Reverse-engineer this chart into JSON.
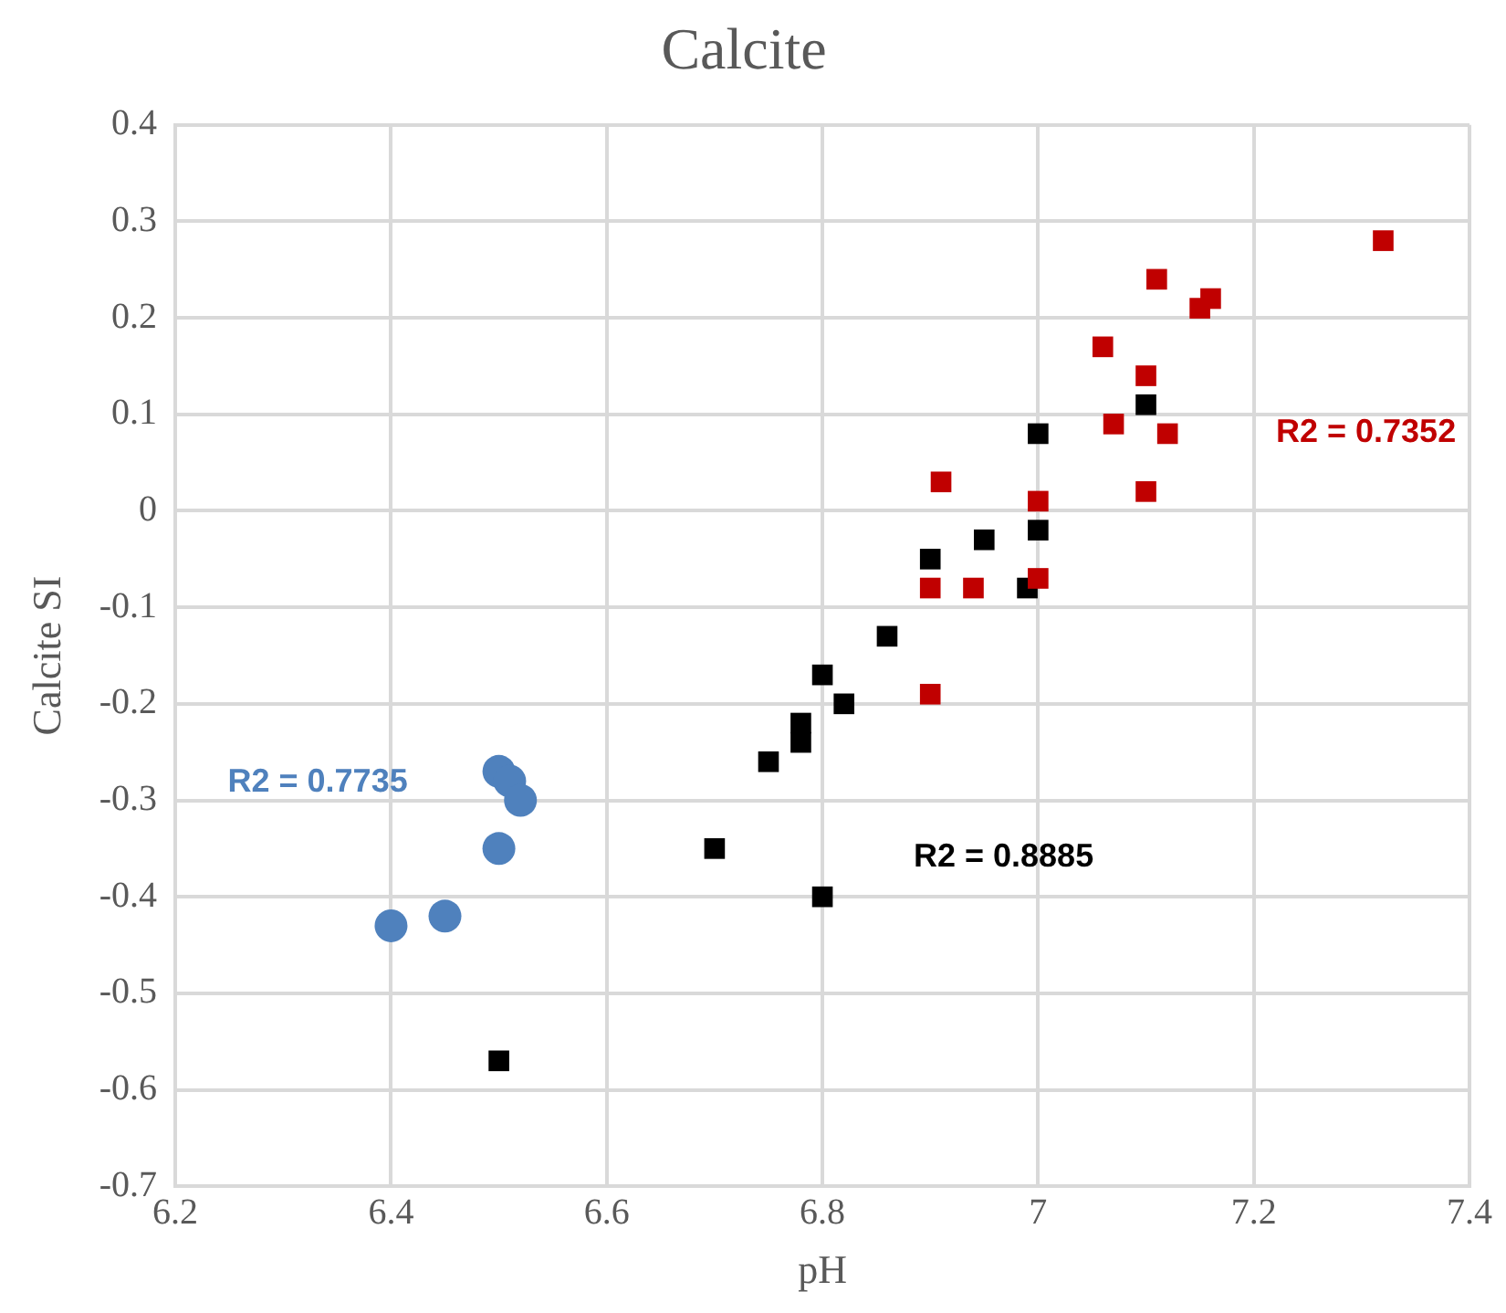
{
  "chart_data": {
    "type": "scatter",
    "title": "Calcite",
    "xlabel": "pH",
    "ylabel": "Calcite SI",
    "xlim": [
      6.2,
      7.4
    ],
    "xticks": [
      6.2,
      6.4,
      6.6,
      6.8,
      7,
      7.2,
      7.4
    ],
    "ylim": [
      -0.7,
      0.4
    ],
    "yticks": [
      -0.7,
      -0.6,
      -0.5,
      -0.4,
      -0.3,
      -0.2,
      -0.1,
      0,
      0.1,
      0.2,
      0.3,
      0.4
    ],
    "grid": true,
    "series": [
      {
        "color": "#4f81bd",
        "marker": "circle",
        "x": [
          6.4,
          6.45,
          6.5,
          6.51,
          6.52,
          6.5
        ],
        "values": [
          -0.43,
          -0.42,
          -0.27,
          -0.28,
          -0.3,
          -0.35
        ]
      },
      {
        "color": "#c00000",
        "marker": "square",
        "x": [
          6.9,
          6.91,
          6.9,
          6.94,
          7,
          7,
          7.06,
          7.07,
          7.1,
          7.1,
          7.11,
          7.12,
          7.15,
          7.16,
          7.32
        ],
        "values": [
          -0.08,
          0.03,
          -0.19,
          -0.08,
          0.01,
          -0.07,
          0.17,
          0.09,
          0.14,
          0.02,
          0.24,
          0.08,
          0.21,
          0.22,
          0.28
        ]
      },
      {
        "color": "#000000",
        "marker": "square",
        "x": [
          6.9,
          6.95,
          6.99,
          7,
          7,
          7.1,
          6.86,
          6.8,
          6.82,
          6.78,
          6.78,
          6.75,
          6.7,
          6.8,
          6.5
        ],
        "values": [
          -0.05,
          -0.03,
          -0.08,
          0.08,
          -0.02,
          0.11,
          -0.13,
          -0.17,
          -0.2,
          -0.22,
          -0.24,
          -0.26,
          -0.35,
          -0.4,
          -0.57
        ]
      }
    ],
    "annotations": [
      "R2 = 0.7735",
      "R2 = 0.7352",
      "R2 = 0.8885"
    ]
  }
}
